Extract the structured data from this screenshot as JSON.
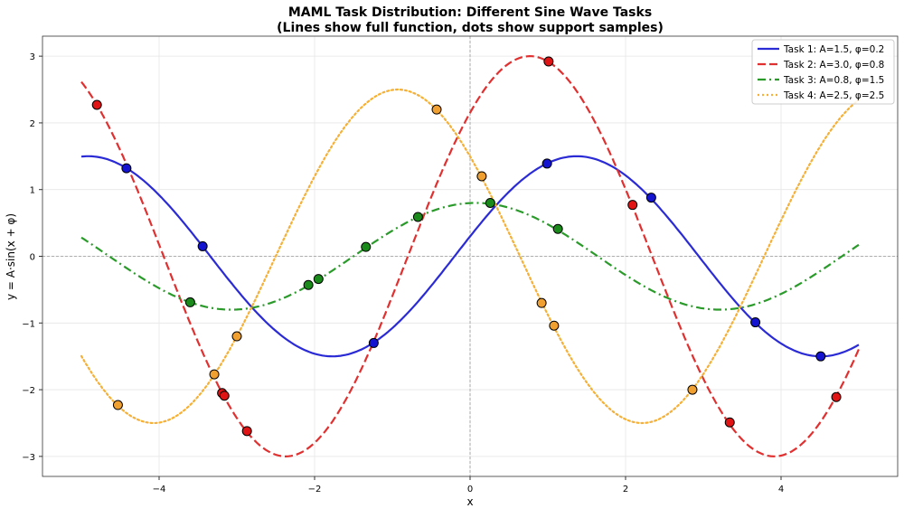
{
  "chart_data": {
    "type": "line",
    "title": "MAML Task Distribution: Different Sine Wave Tasks",
    "subtitle": "(Lines show full function, dots show support samples)",
    "xlabel": "x",
    "ylabel": "y = A·sin(x + φ)",
    "xlim": [
      -5.5,
      5.5
    ],
    "ylim": [
      -3.3,
      3.3
    ],
    "x_range_of_curves": [
      -5,
      5
    ],
    "xticks": [
      -4,
      -2,
      0,
      2,
      4
    ],
    "xtick_labels": [
      "−4",
      "−2",
      "0",
      "2",
      "4"
    ],
    "yticks": [
      -3,
      -2,
      -1,
      0,
      1,
      2,
      3
    ],
    "ytick_labels": [
      "−3",
      "−2",
      "−1",
      "0",
      "1",
      "2",
      "3"
    ],
    "grid": true,
    "legend_position": "top-right",
    "series": [
      {
        "name": "Task 1: A=1.5, φ=0.2",
        "amplitude": 1.5,
        "phase": 0.2,
        "line_style": "solid",
        "color": "#2b2bd6",
        "dot_color": "#1414d0",
        "samples": [
          [
            -4.42,
            1.32
          ],
          [
            -3.44,
            0.15
          ],
          [
            -1.24,
            -1.3
          ],
          [
            0.99,
            1.39
          ],
          [
            2.33,
            0.88
          ],
          [
            3.67,
            -0.99
          ],
          [
            4.51,
            -1.5
          ]
        ]
      },
      {
        "name": "Task 2: A=3.0, φ=0.8",
        "amplitude": 3.0,
        "phase": 0.8,
        "line_style": "dashed",
        "color": "#e03030",
        "dot_color": "#e01414",
        "samples": [
          [
            -4.8,
            2.27
          ],
          [
            -3.19,
            -2.05
          ],
          [
            -3.16,
            -2.09
          ],
          [
            -2.87,
            -2.62
          ],
          [
            1.01,
            2.92
          ],
          [
            2.09,
            0.77
          ],
          [
            3.34,
            -2.49
          ],
          [
            4.71,
            -2.11
          ]
        ]
      },
      {
        "name": "Task 3: A=0.8, φ=1.5",
        "amplitude": 0.8,
        "phase": 1.5,
        "line_style": "dashdot",
        "color": "#2a9a2a",
        "dot_color": "#1a8a1a",
        "samples": [
          [
            -3.6,
            -0.69
          ],
          [
            -2.08,
            -0.43
          ],
          [
            -1.95,
            -0.34
          ],
          [
            -1.34,
            0.14
          ],
          [
            -0.67,
            0.59
          ],
          [
            0.26,
            0.8
          ],
          [
            1.13,
            0.41
          ]
        ]
      },
      {
        "name": "Task 4: A=2.5, φ=2.5",
        "amplitude": 2.5,
        "phase": 2.5,
        "line_style": "dotted",
        "color": "#f5b035",
        "dot_color": "#f0a030",
        "samples": [
          [
            -4.53,
            -2.23
          ],
          [
            -3.29,
            -1.77
          ],
          [
            -3.0,
            -1.2
          ],
          [
            -0.43,
            2.2
          ],
          [
            0.15,
            1.2
          ],
          [
            0.92,
            -0.7
          ],
          [
            1.08,
            -1.04
          ],
          [
            2.86,
            -2.0
          ]
        ]
      }
    ]
  }
}
